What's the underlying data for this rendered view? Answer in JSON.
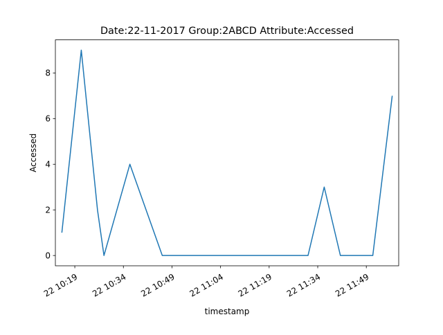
{
  "chart_data": {
    "type": "line",
    "title": "Date:22-11-2017  Group:2ABCD Attribute:Accessed",
    "xlabel": "timestamp",
    "ylabel": "Accessed",
    "x_ticks": [
      "22 10:19",
      "22 10:34",
      "22 10:49",
      "22 11:04",
      "22 11:19",
      "22 11:34",
      "22 11:49"
    ],
    "y_ticks": [
      "0",
      "2",
      "4",
      "6",
      "8"
    ],
    "xlim": [
      "2017-11-22 10:13",
      "2017-11-22 11:59"
    ],
    "ylim": [
      -0.45,
      9.45
    ],
    "grid": false,
    "series": [
      {
        "color": "#1f77b4",
        "x": [
          "2017-11-22 10:15",
          "2017-11-22 10:21",
          "2017-11-22 10:26",
          "2017-11-22 10:28",
          "2017-11-22 10:36",
          "2017-11-22 10:46",
          "2017-11-22 11:31",
          "2017-11-22 11:36",
          "2017-11-22 11:41",
          "2017-11-22 11:51",
          "2017-11-22 11:57"
        ],
        "values": [
          1,
          9,
          2,
          0,
          4,
          0,
          0,
          3,
          0,
          0,
          7
        ]
      }
    ]
  }
}
